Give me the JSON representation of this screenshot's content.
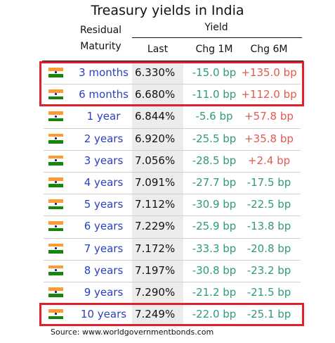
{
  "title": "Treasury yields in India",
  "headers": {
    "residual_line1": "Residual",
    "residual_line2": "Maturity",
    "yield": "Yield",
    "last": "Last",
    "chg1m": "Chg 1M",
    "chg6m": "Chg 6M"
  },
  "colors": {
    "negative": "#2e9a7e",
    "positive": "#e05a4f",
    "maturity": "#2b3fbf",
    "highlight": "#e0202a"
  },
  "flag_icon": "india-flag-icon",
  "highlighted_rows": [
    0,
    1,
    11
  ],
  "chart_data": {
    "type": "table",
    "title": "Treasury yields in India",
    "columns": [
      "Residual Maturity",
      "Last",
      "Chg 1M",
      "Chg 6M"
    ],
    "rows": [
      {
        "maturity": "3 months",
        "last": "6.330%",
        "chg1m": "-15.0 bp",
        "chg6m": "+135.0 bp"
      },
      {
        "maturity": "6 months",
        "last": "6.680%",
        "chg1m": "-11.0 bp",
        "chg6m": "+112.0 bp"
      },
      {
        "maturity": "1 year",
        "last": "6.844%",
        "chg1m": "-5.6 bp",
        "chg6m": "+57.8 bp"
      },
      {
        "maturity": "2 years",
        "last": "6.920%",
        "chg1m": "-25.5 bp",
        "chg6m": "+35.8 bp"
      },
      {
        "maturity": "3 years",
        "last": "7.056%",
        "chg1m": "-28.5 bp",
        "chg6m": "+2.4 bp"
      },
      {
        "maturity": "4 years",
        "last": "7.091%",
        "chg1m": "-27.7 bp",
        "chg6m": "-17.5 bp"
      },
      {
        "maturity": "5 years",
        "last": "7.112%",
        "chg1m": "-30.9 bp",
        "chg6m": "-22.5 bp"
      },
      {
        "maturity": "6 years",
        "last": "7.229%",
        "chg1m": "-25.9 bp",
        "chg6m": "-13.8 bp"
      },
      {
        "maturity": "7 years",
        "last": "7.172%",
        "chg1m": "-33.3 bp",
        "chg6m": "-20.8 bp"
      },
      {
        "maturity": "8 years",
        "last": "7.197%",
        "chg1m": "-30.8 bp",
        "chg6m": "-23.2 bp"
      },
      {
        "maturity": "9 years",
        "last": "7.290%",
        "chg1m": "-21.2 bp",
        "chg6m": "-21.5 bp"
      },
      {
        "maturity": "10 years",
        "last": "7.249%",
        "chg1m": "-22.0 bp",
        "chg6m": "-25.1 bp"
      }
    ]
  },
  "source": "Source: www.worldgovernmentbonds.com"
}
